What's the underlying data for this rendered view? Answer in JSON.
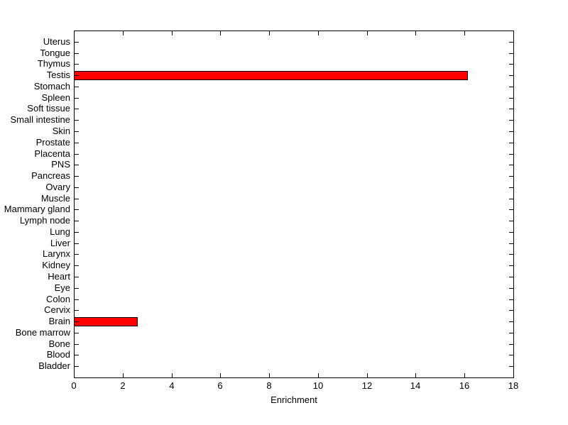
{
  "figure": {
    "background": "#ffffff"
  },
  "chart_data": {
    "type": "bar",
    "orientation": "horizontal",
    "title": "",
    "xlabel": "Enrichment",
    "ylabel": "",
    "xlim": [
      0,
      18
    ],
    "xticks": [
      0,
      2,
      4,
      6,
      8,
      10,
      12,
      14,
      16,
      18
    ],
    "grid": false,
    "legend": "none",
    "bar_color": "#ff0000",
    "bar_edge_color": "#000000",
    "axis_color": "#000000",
    "categories_top_to_bottom": [
      "Uterus",
      "Tongue",
      "Thymus",
      "Testis",
      "Stomach",
      "Spleen",
      "Soft tissue",
      "Small intestine",
      "Skin",
      "Prostate",
      "Placenta",
      "PNS",
      "Pancreas",
      "Ovary",
      "Muscle",
      "Mammary gland",
      "Lymph node",
      "Lung",
      "Liver",
      "Larynx",
      "Kidney",
      "Heart",
      "Eye",
      "Colon",
      "Cervix",
      "Brain",
      "Bone marrow",
      "Bone",
      "Blood",
      "Bladder"
    ],
    "values": [
      0,
      0,
      0,
      16.1,
      0,
      0,
      0,
      0,
      0,
      0,
      0,
      0,
      0,
      0,
      0,
      0,
      0,
      0,
      0,
      0,
      0,
      0,
      0,
      0,
      0,
      2.6,
      0,
      0,
      0,
      0
    ]
  }
}
